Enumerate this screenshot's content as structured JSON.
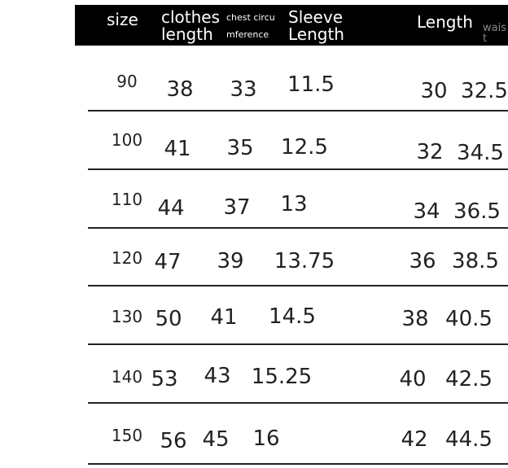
{
  "table": {
    "header": [
      "size",
      "clothes length",
      "chest circumference",
      "Sleeve Length",
      "Length",
      "waist"
    ],
    "rows": [
      [
        90,
        38,
        33,
        11.5,
        30,
        32.5
      ],
      [
        100,
        41,
        35,
        12.5,
        32,
        34.5
      ],
      [
        110,
        44,
        37,
        13,
        34,
        36.5
      ],
      [
        120,
        47,
        39,
        13.75,
        36,
        38.5
      ],
      [
        130,
        50,
        41,
        14.5,
        38,
        40.5
      ],
      [
        140,
        53,
        43,
        15.25,
        40,
        42.5
      ],
      [
        150,
        56,
        45,
        16,
        42,
        44.5
      ]
    ]
  }
}
